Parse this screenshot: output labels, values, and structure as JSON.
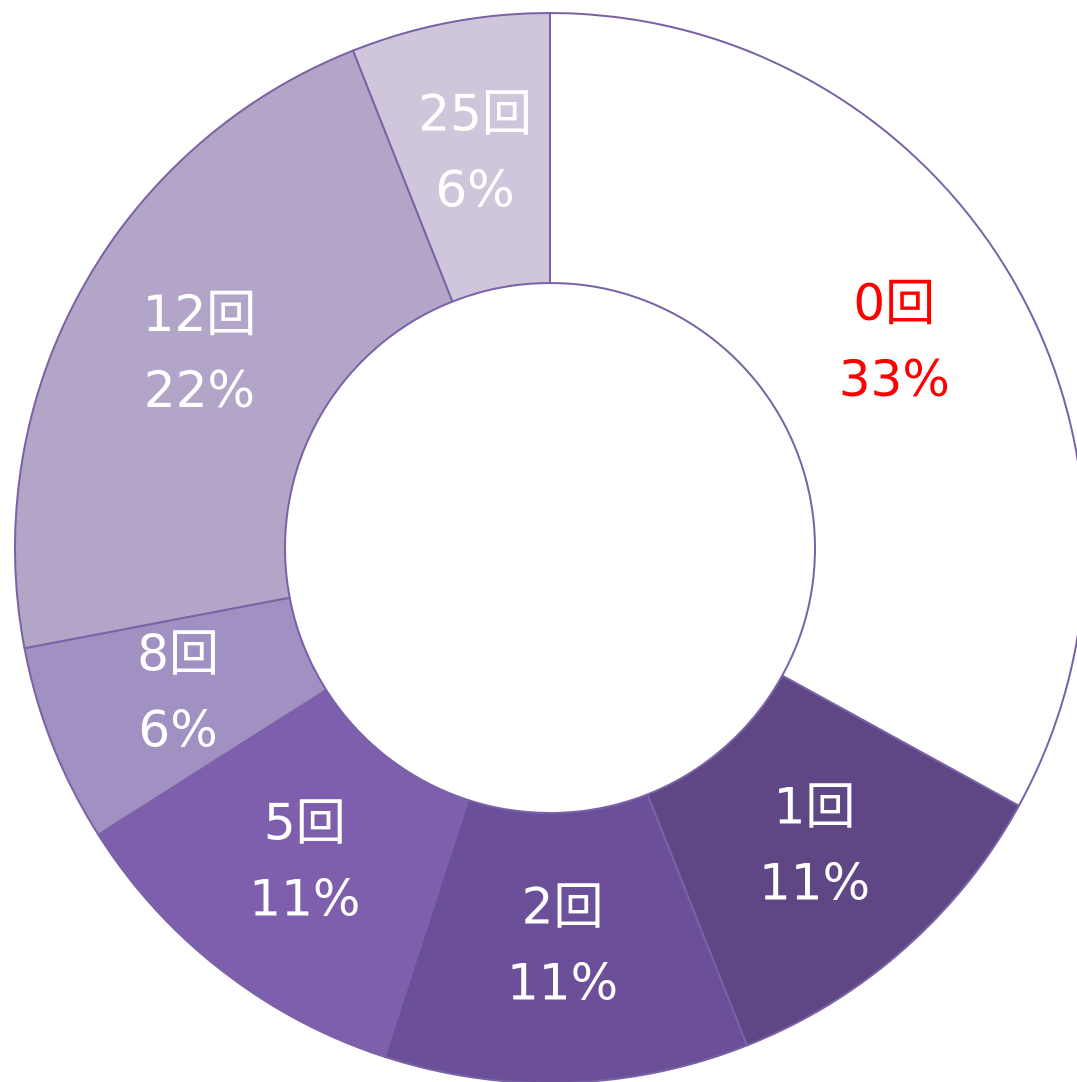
{
  "chart_data": {
    "type": "donut",
    "categories": [
      "0回",
      "1回",
      "2回",
      "5回",
      "8回",
      "12回",
      "25回"
    ],
    "values": [
      33,
      11,
      11,
      11,
      6,
      22,
      6
    ],
    "value_labels": [
      "33%",
      "11%",
      "11%",
      "11%",
      "6%",
      "22%",
      "6%"
    ],
    "colors": [
      "#ffffff",
      "#5e4784",
      "#6c4f99",
      "#7e5fae",
      "#a190c2",
      "#b2a5c8",
      "#cfc6dc"
    ],
    "label_colors": [
      "#ff0000",
      "#ffffff",
      "#ffffff",
      "#ffffff",
      "#ffffff",
      "#ffffff",
      "#ffffff"
    ]
  }
}
